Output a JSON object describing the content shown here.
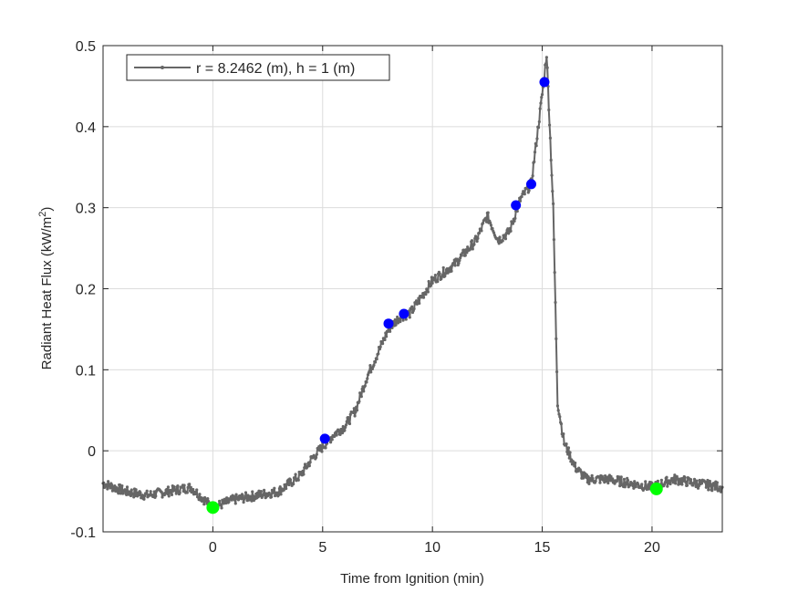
{
  "chart_data": {
    "type": "line",
    "title": "",
    "xlabel": "Time from Ignition (min)",
    "ylabel_parts": [
      "Radiant Heat Flux (kW/m",
      "2",
      ")"
    ],
    "xlim": [
      -5,
      23.2
    ],
    "ylim": [
      -0.1,
      0.5
    ],
    "xticks": [
      0,
      5,
      10,
      15,
      20
    ],
    "yticks": [
      -0.1,
      0,
      0.1,
      0.2,
      0.3,
      0.4,
      0.5
    ],
    "ytick_labels": [
      "-0.1",
      "0",
      "0.1",
      "0.2",
      "0.3",
      "0.4",
      "0.5"
    ],
    "grid": true,
    "legend_position": "top-left",
    "series": [
      {
        "name": "r = 8.2462 (m), h = 1 (m)",
        "color": "#666666",
        "x": [
          -5,
          -4,
          -3,
          -2,
          -1,
          0,
          0.5,
          1,
          2,
          3,
          3.5,
          4,
          4.5,
          5,
          5.5,
          6,
          6.5,
          7,
          7.5,
          8,
          8.5,
          9,
          9.5,
          10,
          10.5,
          11,
          11.5,
          12,
          12.5,
          13,
          13.5,
          14,
          14.5,
          15,
          15.2,
          15.5,
          15.7,
          16,
          16.5,
          17,
          18,
          19,
          20,
          21,
          22,
          23.2
        ],
        "y": [
          -0.04,
          -0.05,
          -0.055,
          -0.05,
          -0.045,
          -0.07,
          -0.065,
          -0.06,
          -0.055,
          -0.05,
          -0.04,
          -0.03,
          -0.01,
          0.005,
          0.02,
          0.03,
          0.05,
          0.09,
          0.12,
          0.15,
          0.165,
          0.17,
          0.19,
          0.21,
          0.22,
          0.23,
          0.245,
          0.26,
          0.29,
          0.26,
          0.27,
          0.31,
          0.33,
          0.44,
          0.49,
          0.3,
          0.06,
          0.01,
          -0.02,
          -0.035,
          -0.035,
          -0.04,
          -0.045,
          -0.035,
          -0.04,
          -0.045
        ]
      }
    ],
    "markers": [
      {
        "color": "#0000ff",
        "points": [
          [
            5.1,
            0.015
          ],
          [
            8.0,
            0.157
          ],
          [
            8.7,
            0.169
          ],
          [
            13.8,
            0.303
          ],
          [
            14.5,
            0.329
          ],
          [
            15.1,
            0.455
          ]
        ]
      },
      {
        "color": "#00ff00",
        "points": [
          [
            0,
            -0.07
          ],
          [
            20.2,
            -0.047
          ]
        ]
      }
    ]
  }
}
